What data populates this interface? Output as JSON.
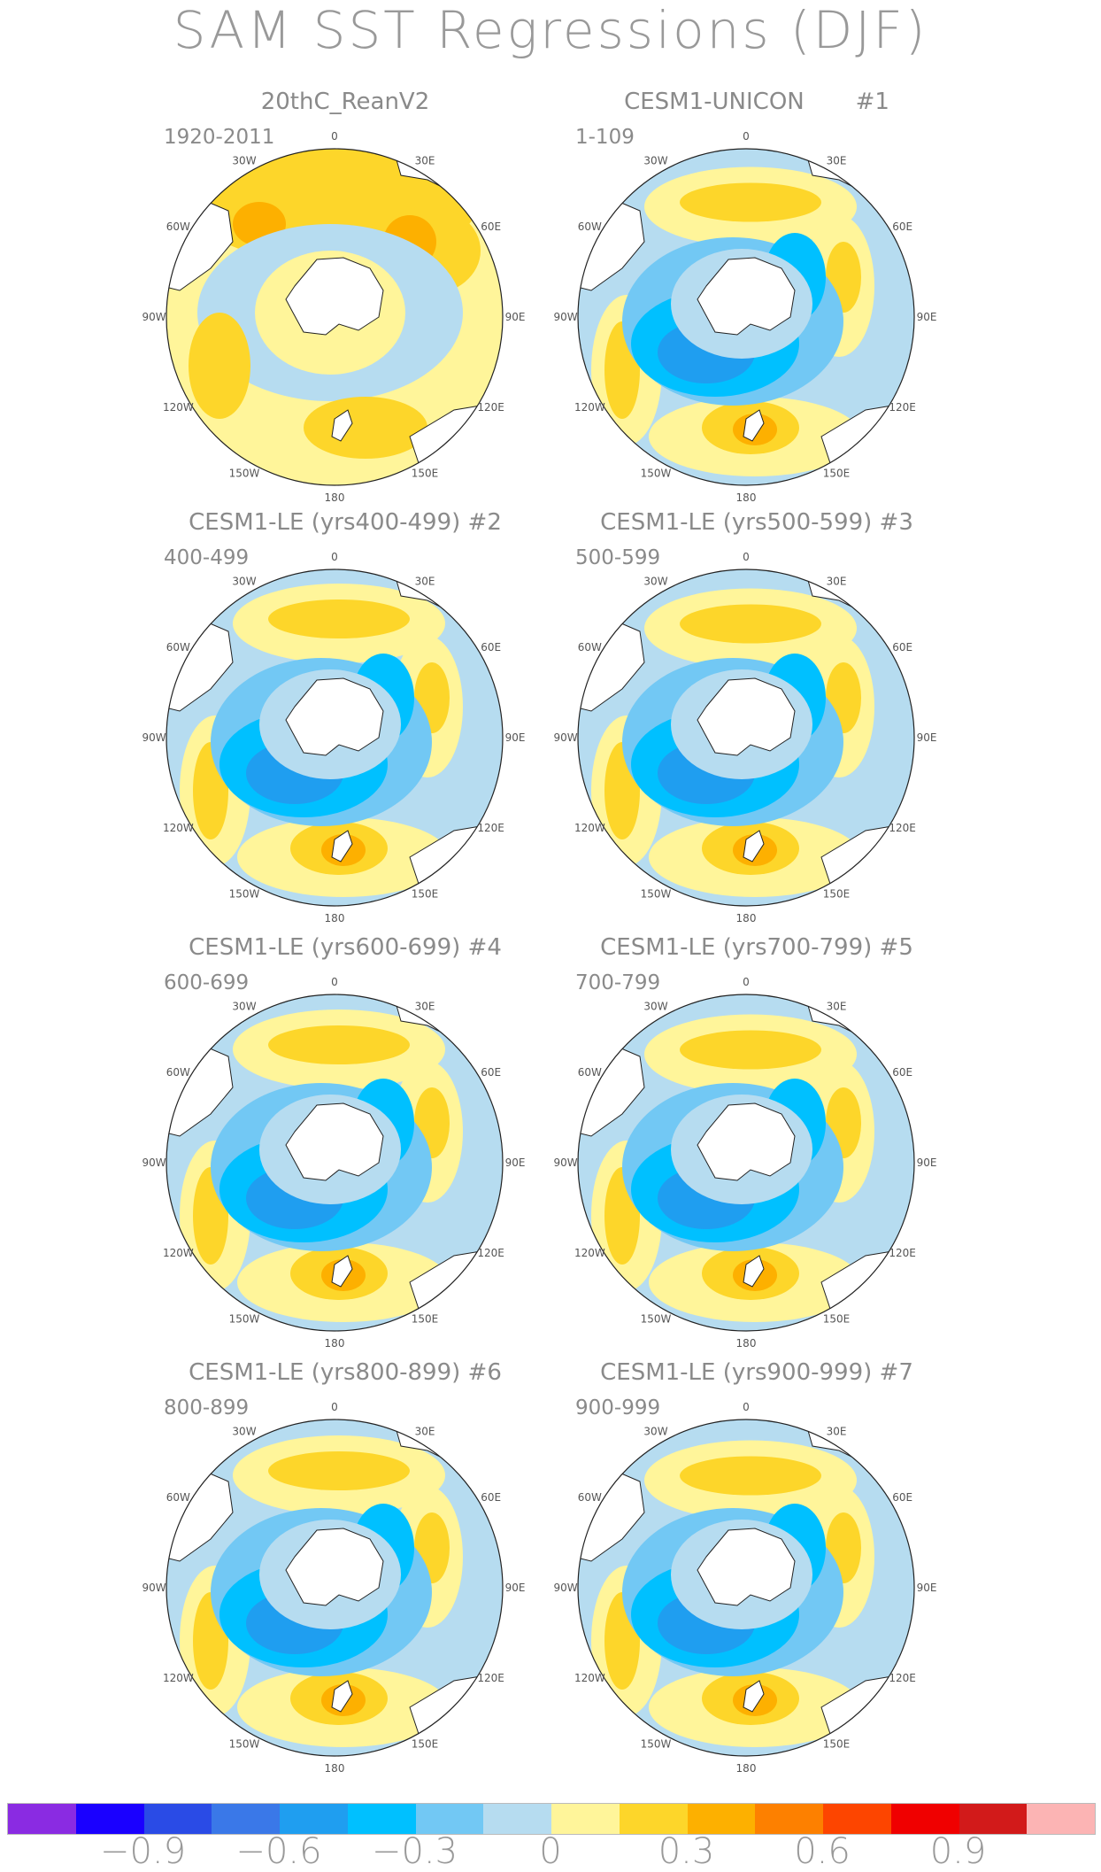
{
  "title": "SAM SST Regressions (DJF)",
  "panels": [
    {
      "title": "20thC_ReanV2",
      "years": "1920-2011"
    },
    {
      "title": "CESM1-UNICON       #1",
      "years": "1-109"
    },
    {
      "title": "CESM1-LE (yrs400-499) #2",
      "years": "400-499"
    },
    {
      "title": "CESM1-LE (yrs500-599) #3",
      "years": "500-599"
    },
    {
      "title": "CESM1-LE (yrs600-699) #4",
      "years": "600-699"
    },
    {
      "title": "CESM1-LE (yrs700-799) #5",
      "years": "700-799"
    },
    {
      "title": "CESM1-LE (yrs800-899) #6",
      "years": "800-899"
    },
    {
      "title": "CESM1-LE (yrs900-999) #7",
      "years": "900-999"
    }
  ],
  "longitude_labels": [
    "0",
    "30E",
    "60E",
    "90E",
    "120E",
    "150E",
    "180",
    "150W",
    "120W",
    "90W",
    "60W",
    "30W"
  ],
  "colorbar": {
    "colors": [
      "#8a2be2",
      "#1a00ff",
      "#2a4be6",
      "#3a78e8",
      "#1f9ef0",
      "#00c0ff",
      "#72c8f4",
      "#b6dcf0",
      "#fff59a",
      "#fdd62a",
      "#fdb000",
      "#fd8000",
      "#fd4500",
      "#f00000",
      "#d21a1a",
      "#fcb4b4"
    ],
    "labels": [
      "−0.9",
      "−0.6",
      "−0.3",
      "0",
      "0.3",
      "0.6",
      "0.9"
    ]
  }
}
